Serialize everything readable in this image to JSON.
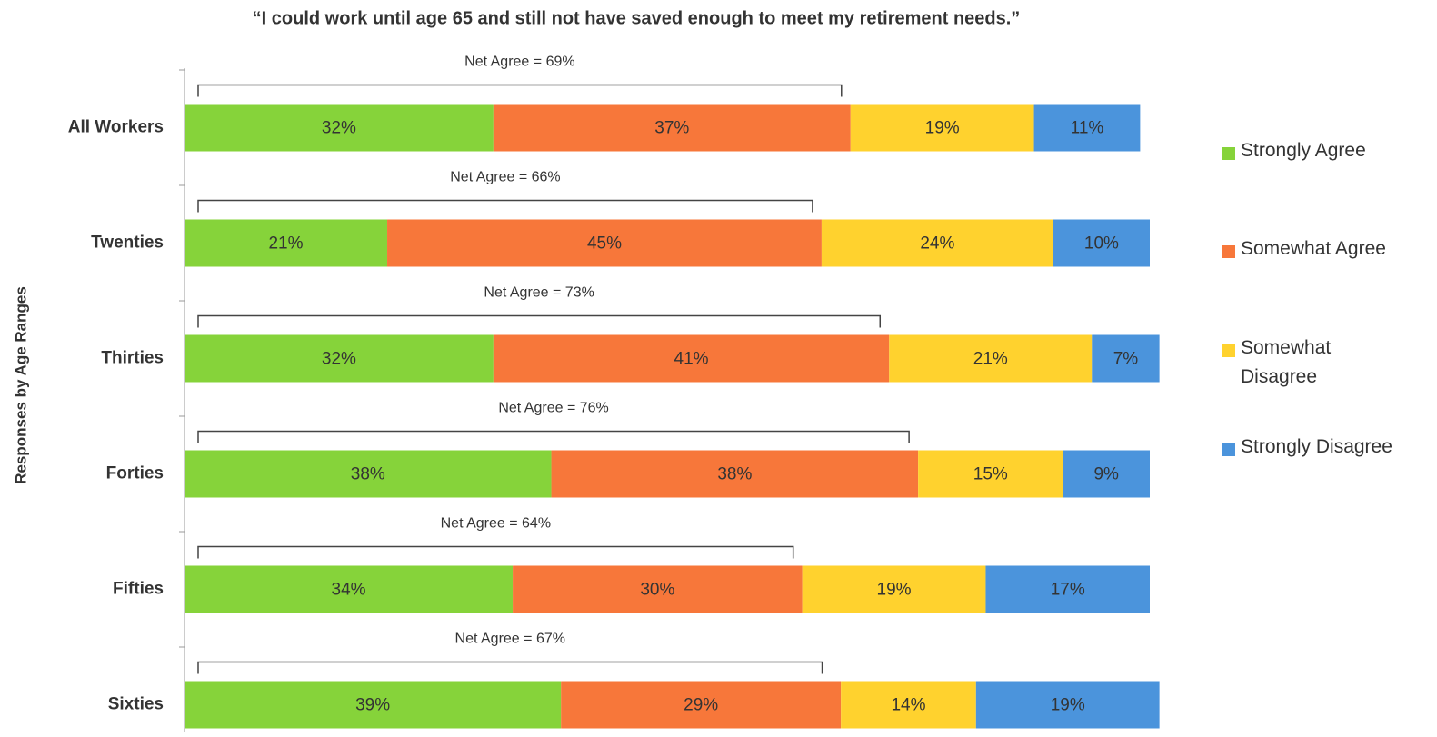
{
  "chart_data": {
    "type": "stacked_bar_horizontal",
    "title": "“I could work until age 65 and still not have saved enough to meet my retirement needs.”",
    "y_label": "Responses by Age Ranges",
    "categories": [
      "All Workers",
      "Twenties",
      "Thirties",
      "Forties",
      "Fifties",
      "Sixties"
    ],
    "series": [
      {
        "name": "Strongly Agree",
        "color": "#86d33a",
        "values": [
          32,
          21,
          32,
          38,
          34,
          39
        ],
        "value_labels": [
          "32%",
          "21%",
          "32%",
          "38%",
          "34%",
          "39%"
        ]
      },
      {
        "name": "Somewhat Agree",
        "color": "#f7773a",
        "values": [
          37,
          45,
          41,
          38,
          30,
          29
        ],
        "value_labels": [
          "37%",
          "45%",
          "41%",
          "38%",
          "30%",
          "29%"
        ]
      },
      {
        "name": "Somewhat Disagree",
        "color": "#ffd22e",
        "values": [
          19,
          24,
          21,
          15,
          19,
          14
        ],
        "value_labels": [
          "19%",
          "24%",
          "21%",
          "15%",
          "19%",
          "14%"
        ]
      },
      {
        "name": "Strongly Disagree",
        "color": "#4b94dc",
        "values": [
          11,
          10,
          7,
          9,
          17,
          19
        ],
        "value_labels": [
          "11%",
          "10%",
          "7%",
          "9%",
          "17%",
          "19%"
        ]
      }
    ],
    "annotations": [
      {
        "text": "Net Agree = 69%",
        "value": 69
      },
      {
        "text": "Net Agree = 66%",
        "value": 66
      },
      {
        "text": "Net Agree = 73%",
        "value": 73
      },
      {
        "text": "Net Agree = 76%",
        "value": 76
      },
      {
        "text": "Net Agree = 64%",
        "value": 64
      },
      {
        "text": "Net Agree = 67%",
        "value": 67
      }
    ],
    "xlim": [
      0,
      100
    ],
    "legend": "right"
  }
}
